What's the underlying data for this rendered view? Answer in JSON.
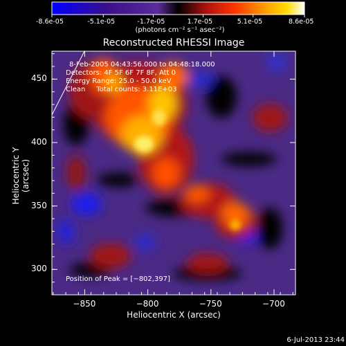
{
  "colorbar": {
    "ticks": [
      "-8.6e-05",
      "-5.1e-05",
      "-1.7e-05",
      "1.7e-05",
      "5.1e-05",
      "8.6e-05"
    ],
    "tick_values": [
      -8.6e-05,
      -5.1e-05,
      -1.7e-05,
      1.7e-05,
      5.1e-05,
      8.6e-05
    ],
    "units": "(photons cm⁻² s⁻¹ asec⁻²)",
    "range": [
      -8.6e-05,
      8.6e-05
    ],
    "colors": [
      "#0000ff",
      "#4b0082",
      "#000000",
      "#b22222",
      "#ff6600",
      "#ffd700",
      "#ffffff"
    ]
  },
  "chart_data": {
    "type": "heatmap",
    "title": "Reconstructed RHESSI Image",
    "xlabel": "Heliocentric X (arcsec)",
    "ylabel": "Heliocentric Y (arcsec)",
    "xlim": [
      -876,
      -683
    ],
    "ylim": [
      280,
      472
    ],
    "x_ticks": [
      -850,
      -800,
      -750,
      -700
    ],
    "y_ticks": [
      300,
      350,
      400,
      450
    ],
    "x_tick_labels": [
      "−850",
      "−800",
      "−750",
      "−700"
    ],
    "y_tick_labels": [
      "300",
      "350",
      "400",
      "450"
    ],
    "annotations": [
      "8-Feb-2005 04:43:56.000 to 04:48:18.000",
      "Detectors: 4F 5F 6F 7F 8F, Att 0",
      "Energy Range: 25.0 - 50.0 keV",
      "Clean     Total counts: 3.11E+03"
    ],
    "peak_text": "Position of Peak = [−802,397]",
    "peak": [
      -802,
      397
    ],
    "limb_visible": true
  },
  "footer": {
    "timestamp": "6-Jul-2013 23:44"
  }
}
